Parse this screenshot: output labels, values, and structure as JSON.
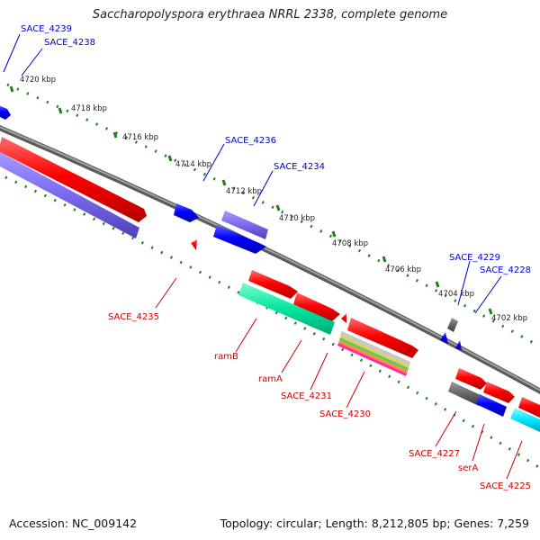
{
  "title": "Saccharopolyspora erythraea NRRL 2338, complete genome",
  "footer": {
    "accession": "Accession: NC_009142",
    "summary": "Topology: circular; Length: 8,212,805 bp; Genes: 7,259"
  },
  "colors": {
    "forward_cds": "#ff0000",
    "reverse_cds": "#0000ff",
    "rna": "#7b68ee",
    "other": "#666666",
    "label_forward": "#0000cc",
    "label_reverse": "#cc0000",
    "backbone": "#808080",
    "tick": "#1f7f1f"
  },
  "ruler_labels": [
    "4720 kbp",
    "4718 kbp",
    "4716 kbp",
    "4714 kbp",
    "4712 kbp",
    "4710 kbp",
    "4708 kbp",
    "4706 kbp",
    "4704 kbp",
    "4702 kbp"
  ],
  "genes_top": [
    "SACE_4239",
    "SACE_4238",
    "SACE_4236",
    "SACE_4234",
    "SACE_4229",
    "SACE_4228"
  ],
  "genes_bottom": [
    "SACE_4235",
    "ramB",
    "ramA",
    "SACE_4231",
    "SACE_4230",
    "SACE_4227",
    "serA",
    "SACE_4225"
  ]
}
